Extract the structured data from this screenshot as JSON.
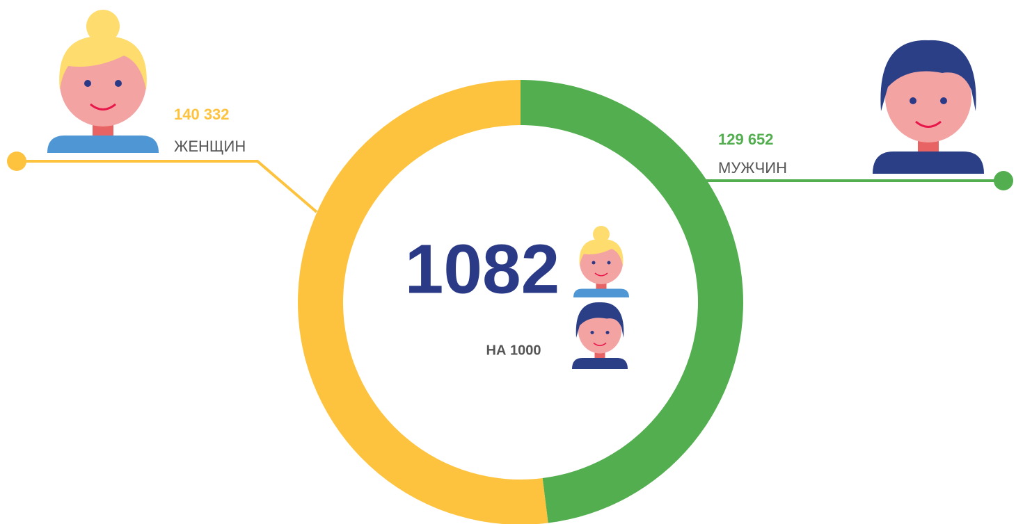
{
  "chart_data": {
    "type": "donut",
    "categories": [
      "МУЖЧИН",
      "ЖЕНЩИН"
    ],
    "values": [
      129652,
      140332
    ],
    "value_labels": [
      "129 652",
      "140 332"
    ],
    "colors": [
      "#52ae4f",
      "#fec33e"
    ],
    "center_label": "1082",
    "center_sublabel": "НА 1000"
  }
}
